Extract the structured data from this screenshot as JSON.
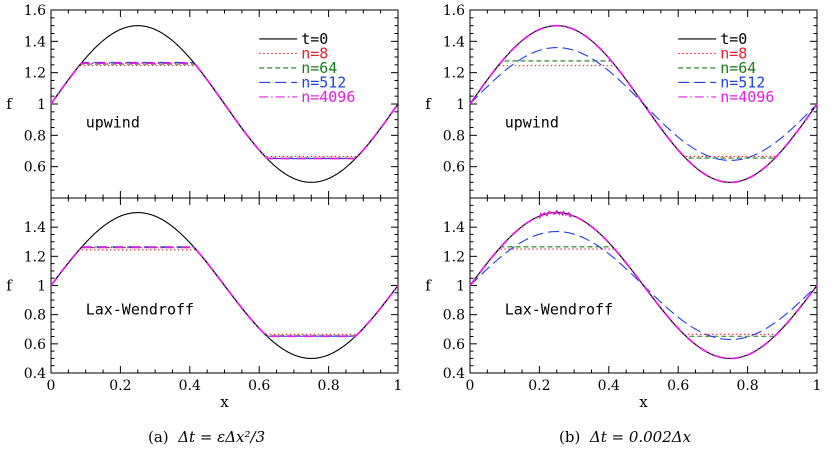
{
  "chart_data": {
    "type": "line",
    "x_label": "x",
    "y_label": "f",
    "x_ticks": [
      "0",
      "0.2",
      "0.4",
      "0.6",
      "0.8",
      "1"
    ],
    "xlim": [
      0,
      1
    ],
    "legend": [
      {
        "key": "t0",
        "label": "t=0",
        "color": "#000000",
        "dash": "solid"
      },
      {
        "key": "n8",
        "label": "n=8",
        "color": "#e8202a",
        "dash": "dotted"
      },
      {
        "key": "n64",
        "label": "n=64",
        "color": "#1a7a1a",
        "dash": "short-dash"
      },
      {
        "key": "n512",
        "label": "n=512",
        "color": "#2040e0",
        "dash": "long-dash"
      },
      {
        "key": "n4096",
        "label": "n=4096",
        "color": "#e020e0",
        "dash": "dash-dot"
      }
    ],
    "columns": [
      {
        "caption_prefix": "(a)",
        "caption_math": "Δt = εΔx²/3",
        "panels": [
          {
            "label": "upwind",
            "ylim": [
              0.4,
              1.6
            ],
            "y_ticks": [
              "0.6",
              "0.8",
              "1",
              "1.2",
              "1.4",
              "1.6"
            ],
            "series": {
              "t0": {
                "type": "sine",
                "amp": 0.5
              },
              "n8": {
                "type": "clip",
                "amp": 0.5,
                "lo": 0.665,
                "hi": 1.245
              },
              "n64": {
                "type": "clip",
                "amp": 0.5,
                "lo": 0.655,
                "hi": 1.255
              },
              "n512": {
                "type": "clip",
                "amp": 0.5,
                "lo": 0.652,
                "hi": 1.265
              },
              "n4096": {
                "type": "clip",
                "amp": 0.5,
                "lo": 0.652,
                "hi": 1.26
              }
            }
          },
          {
            "label": "Lax-Wendroff",
            "ylim": [
              0.4,
              1.6
            ],
            "y_ticks": [
              "0.4",
              "0.6",
              "0.8",
              "1",
              "1.2",
              "1.4"
            ],
            "series": {
              "t0": {
                "type": "sine",
                "amp": 0.5
              },
              "n8": {
                "type": "clip",
                "amp": 0.5,
                "lo": 0.665,
                "hi": 1.245
              },
              "n64": {
                "type": "clip",
                "amp": 0.5,
                "lo": 0.655,
                "hi": 1.26
              },
              "n512": {
                "type": "clip",
                "amp": 0.5,
                "lo": 0.652,
                "hi": 1.265
              },
              "n4096": {
                "type": "clip",
                "amp": 0.5,
                "lo": 0.652,
                "hi": 1.262
              }
            }
          }
        ]
      },
      {
        "caption_prefix": "(b)",
        "caption_math": "Δt = 0.002Δx",
        "panels": [
          {
            "label": "upwind",
            "ylim": [
              0.4,
              1.6
            ],
            "y_ticks": [
              "0.6",
              "0.8",
              "1",
              "1.2",
              "1.4",
              "1.6"
            ],
            "series": {
              "t0": {
                "type": "sine",
                "amp": 0.5
              },
              "n8": {
                "type": "clip",
                "amp": 0.5,
                "lo": 0.665,
                "hi": 1.245
              },
              "n64": {
                "type": "clip",
                "amp": 0.5,
                "lo": 0.655,
                "hi": 1.275
              },
              "n512": {
                "type": "sine",
                "amp": 0.36
              },
              "n4096": {
                "type": "sine",
                "amp": 0.5
              }
            }
          },
          {
            "label": "Lax-Wendroff",
            "ylim": [
              0.4,
              1.6
            ],
            "y_ticks": [
              "0.4",
              "0.6",
              "0.8",
              "1",
              "1.2",
              "1.4"
            ],
            "series": {
              "t0": {
                "type": "sine",
                "amp": 0.5
              },
              "n8": {
                "type": "clip",
                "amp": 0.5,
                "lo": 0.665,
                "hi": 1.25
              },
              "n64": {
                "type": "clip",
                "amp": 0.5,
                "lo": 0.652,
                "hi": 1.265
              },
              "n512": {
                "type": "sine",
                "amp": 0.37
              },
              "n4096": {
                "type": "sine",
                "amp": 0.5,
                "noise": true
              }
            }
          }
        ]
      }
    ]
  }
}
